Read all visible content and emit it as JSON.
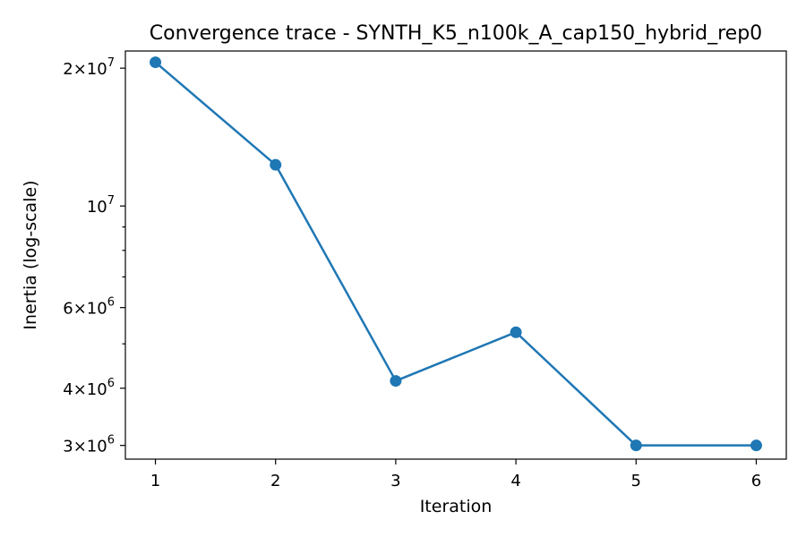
{
  "chart_data": {
    "type": "line",
    "title": "Convergence trace - SYNTH_K5_n100k_A_cap150_hybrid_rep0",
    "xlabel": "Iteration",
    "ylabel": "Inertia (log-scale)",
    "yscale": "log",
    "xlim": [
      0.75,
      6.25
    ],
    "ylim": [
      2800000,
      21800000
    ],
    "grid": false,
    "x": [
      1,
      2,
      3,
      4,
      5,
      6
    ],
    "series": [
      {
        "values": [
          20600000,
          12300000,
          4150000,
          5300000,
          3000000,
          3000000
        ],
        "color": "#1f77b4",
        "marker": "circle"
      }
    ],
    "x_ticks": [
      {
        "value": 1,
        "label": "1"
      },
      {
        "value": 2,
        "label": "2"
      },
      {
        "value": 3,
        "label": "3"
      },
      {
        "value": 4,
        "label": "4"
      },
      {
        "value": 5,
        "label": "5"
      },
      {
        "value": 6,
        "label": "6"
      }
    ],
    "y_major_ticks": [
      {
        "value": 20000000,
        "mantissa": "2",
        "exponent": "7"
      },
      {
        "value": 10000000,
        "mantissa": "",
        "exponent": "7"
      },
      {
        "value": 6000000,
        "mantissa": "6",
        "exponent": "6"
      },
      {
        "value": 4000000,
        "mantissa": "4",
        "exponent": "6"
      },
      {
        "value": 3000000,
        "mantissa": "3",
        "exponent": "6"
      }
    ],
    "y_minor_ticks": [
      5000000,
      7000000,
      8000000,
      9000000
    ]
  }
}
